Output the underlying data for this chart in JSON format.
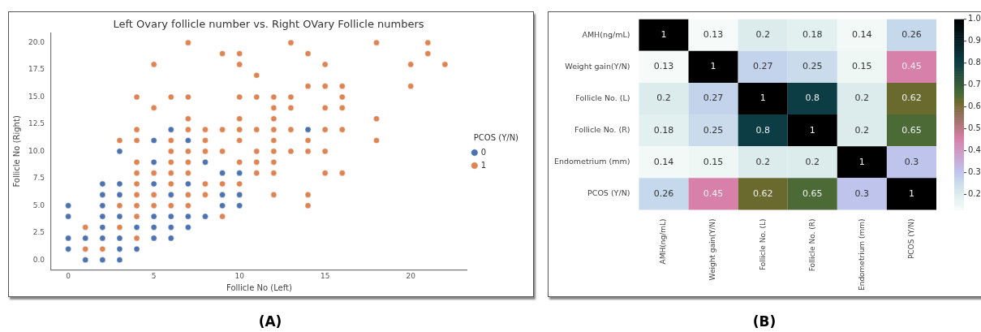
{
  "chart_data": [
    {
      "type": "scatter",
      "title": "Left Ovary follicle number vs. Right OVary Follicle numbers",
      "xlabel": "Follicle No (Left)",
      "ylabel": "Follicle No (Right)",
      "legend_title": "PCOS (Y/N)",
      "legend": "right",
      "marker": "circle",
      "grid": false,
      "xlim": [
        -1,
        23.3
      ],
      "ylim": [
        -0.9,
        20.9
      ],
      "xticks": [
        0,
        5,
        10,
        15,
        20
      ],
      "yticks": [
        {
          "value": 0,
          "label": "0.0"
        },
        {
          "value": 2.5,
          "label": "2.5"
        },
        {
          "value": 5,
          "label": "5.0"
        },
        {
          "value": 7.5,
          "label": "7.5"
        },
        {
          "value": 10,
          "label": "10.0"
        },
        {
          "value": 12.5,
          "label": "12.5"
        },
        {
          "value": 15,
          "label": "15.0"
        },
        {
          "value": 17.5,
          "label": "17.5"
        },
        {
          "value": 20,
          "label": "20.0"
        }
      ],
      "annotations": [
        "(A)"
      ],
      "series": [
        {
          "name": "0",
          "color": "#4c72b0",
          "x": [
            0,
            0,
            0,
            0,
            1,
            1,
            2,
            2,
            2,
            2,
            2,
            2,
            2,
            3,
            3,
            3,
            3,
            3,
            3,
            3,
            4,
            4,
            5,
            5,
            5,
            5,
            5,
            5,
            6,
            6,
            6,
            6,
            6,
            7,
            7,
            7,
            7,
            8,
            8,
            9,
            9,
            9,
            10,
            10,
            10,
            14
          ],
          "values": [
            5,
            4,
            2,
            1,
            2,
            0,
            7,
            6,
            5,
            4,
            3,
            2,
            0,
            10,
            7,
            6,
            4,
            2,
            1,
            0,
            3,
            1,
            11,
            9,
            7,
            4,
            3,
            2,
            12,
            6,
            4,
            3,
            2,
            11,
            7,
            4,
            3,
            9,
            4,
            8,
            6,
            5,
            8,
            6,
            5,
            12
          ]
        },
        {
          "name": "1",
          "color": "#dd8452",
          "x": [
            1,
            1,
            2,
            3,
            3,
            3,
            4,
            4,
            4,
            4,
            4,
            4,
            4,
            4,
            4,
            4,
            5,
            5,
            5,
            5,
            5,
            6,
            6,
            6,
            6,
            6,
            6,
            6,
            7,
            7,
            7,
            7,
            7,
            7,
            7,
            7,
            7,
            8,
            8,
            8,
            8,
            8,
            9,
            9,
            9,
            9,
            9,
            10,
            10,
            10,
            10,
            10,
            10,
            10,
            10,
            11,
            11,
            11,
            11,
            11,
            11,
            12,
            12,
            12,
            12,
            12,
            12,
            12,
            12,
            12,
            13,
            13,
            13,
            13,
            13,
            14,
            14,
            14,
            14,
            14,
            14,
            15,
            15,
            15,
            15,
            15,
            15,
            16,
            16,
            16,
            16,
            16,
            18,
            18,
            18,
            20,
            20,
            21,
            21,
            22
          ],
          "values": [
            3,
            1,
            1,
            11,
            5,
            3,
            15,
            12,
            11,
            9,
            8,
            7,
            6,
            5,
            4,
            2,
            18,
            14,
            8,
            6,
            5,
            15,
            11,
            10,
            9,
            8,
            7,
            5,
            20,
            15,
            13,
            12,
            10,
            9,
            8,
            6,
            5,
            12,
            11,
            10,
            7,
            6,
            19,
            12,
            10,
            7,
            4,
            19,
            18,
            15,
            13,
            12,
            11,
            9,
            7,
            17,
            15,
            12,
            10,
            9,
            8,
            15,
            14,
            13,
            12,
            11,
            10,
            9,
            8,
            6,
            20,
            15,
            14,
            12,
            10,
            19,
            16,
            11,
            10,
            6,
            5,
            18,
            16,
            14,
            12,
            10,
            8,
            16,
            15,
            14,
            12,
            8,
            20,
            13,
            11,
            18,
            16,
            20,
            19,
            18
          ]
        }
      ]
    },
    {
      "type": "heatmap",
      "categories": [
        "AMH(ng/mL)",
        "Weight gain(Y/N)",
        "Follicle No. (L)",
        "Follicle No. (R)",
        "Endometrium (mm)",
        "PCOS (Y/N)"
      ],
      "y_categories": [
        "AMH(ng/mL)",
        "Weight gain(Y/N)",
        "Follicle No. (L)",
        "Follicle No. (R)",
        "Endometrium (mm)",
        "PCOS (Y/N)"
      ],
      "cells": [
        [
          1,
          0.13,
          0.2,
          0.18,
          0.14,
          0.26
        ],
        [
          0.13,
          1,
          0.27,
          0.25,
          0.15,
          0.45
        ],
        [
          0.2,
          0.27,
          1,
          0.8,
          0.2,
          0.62
        ],
        [
          0.18,
          0.25,
          0.8,
          1,
          0.2,
          0.65
        ],
        [
          0.14,
          0.15,
          0.2,
          0.2,
          1,
          0.3
        ],
        [
          0.26,
          0.45,
          0.62,
          0.65,
          0.3,
          1
        ]
      ],
      "data_labels": true,
      "clim": [
        0.13,
        1
      ],
      "cticks": [
        {
          "value": 0.2,
          "label": "0.2"
        },
        {
          "value": 0.3,
          "label": "0.3"
        },
        {
          "value": 0.4,
          "label": "0.4"
        },
        {
          "value": 0.5,
          "label": "0.5"
        },
        {
          "value": 0.6,
          "label": "0.6"
        },
        {
          "value": 0.7,
          "label": "0.7"
        },
        {
          "value": 0.8,
          "label": "0.8"
        },
        {
          "value": 0.9,
          "label": "0.9"
        },
        {
          "value": 1,
          "label": "1.0"
        }
      ],
      "annotations": [
        "(B)"
      ]
    }
  ]
}
